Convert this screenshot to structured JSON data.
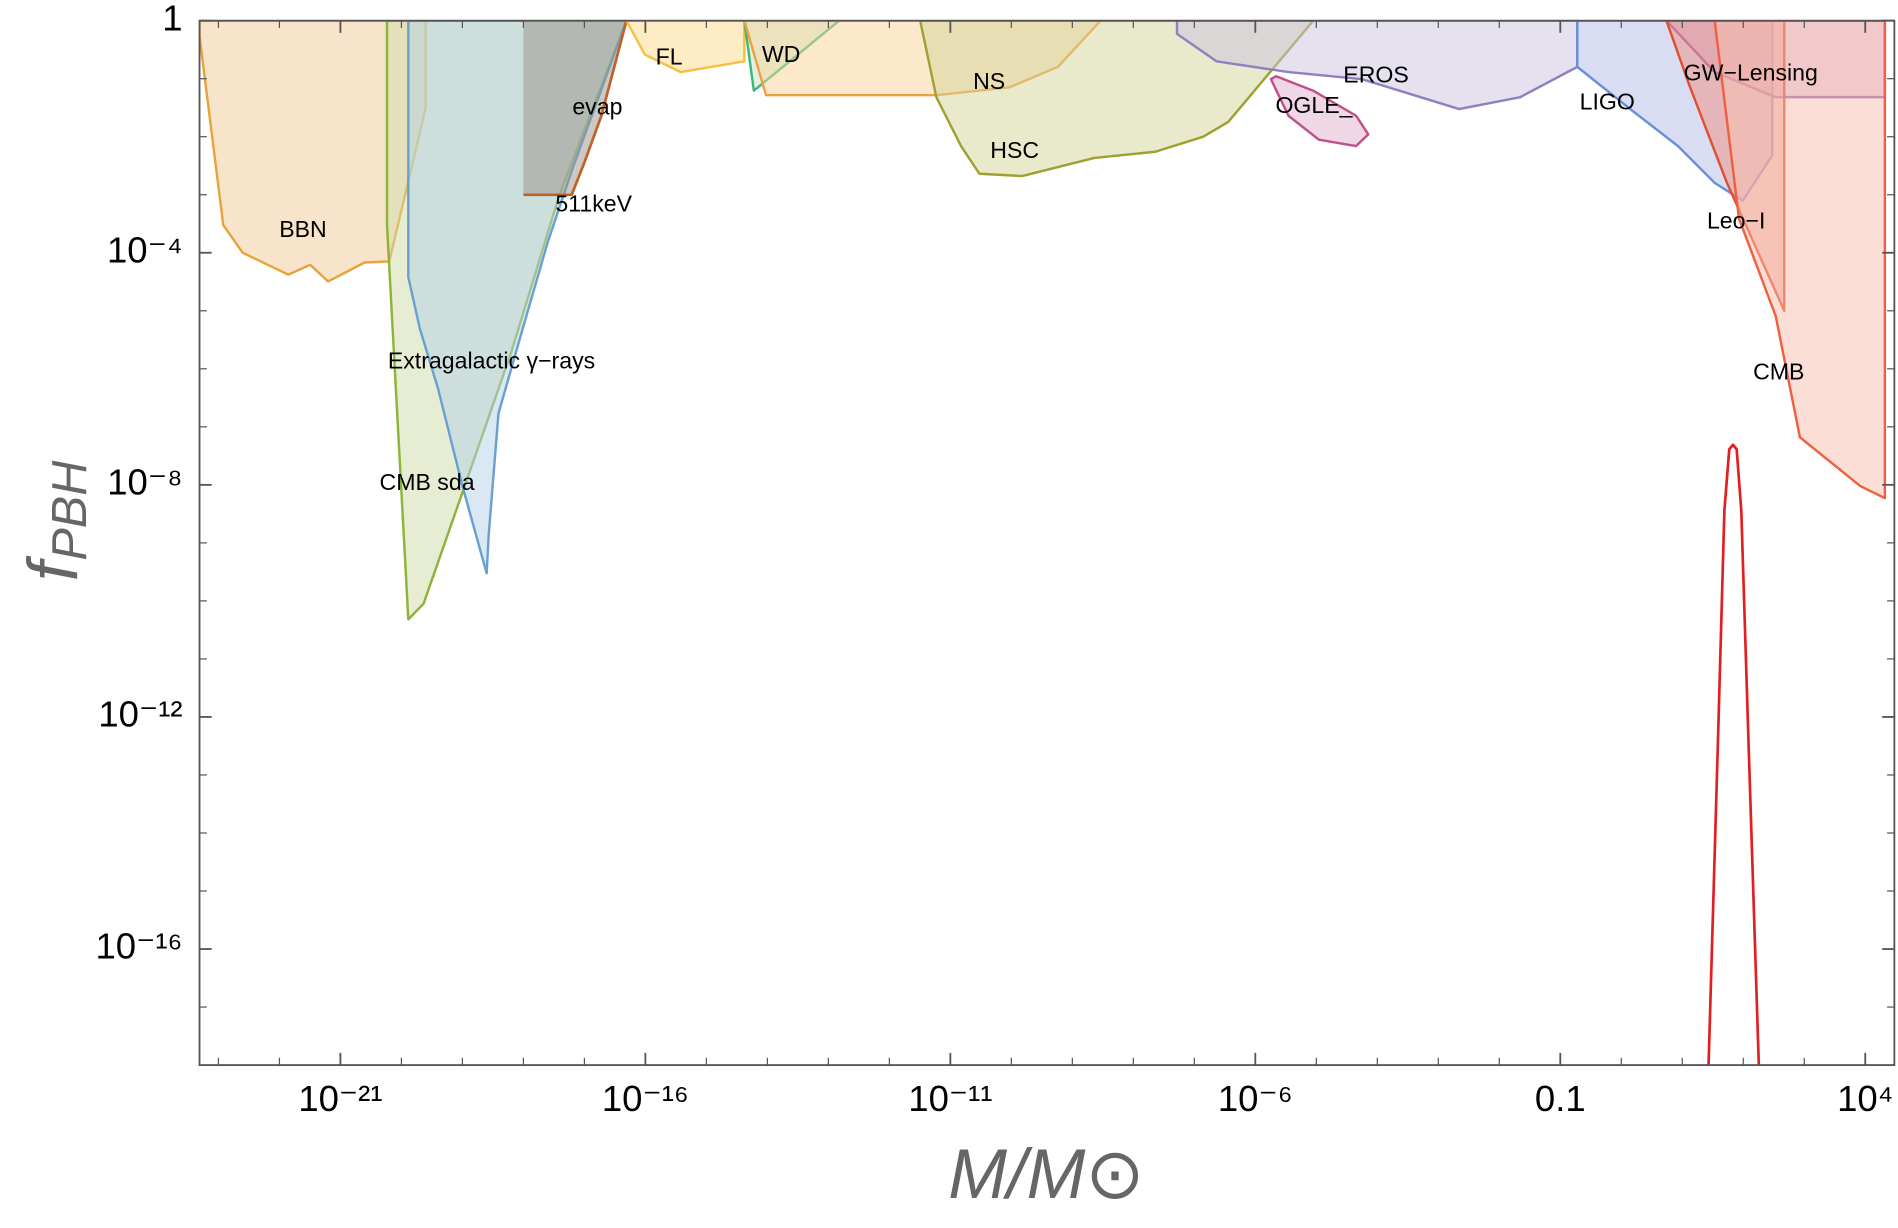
{
  "chart_data": {
    "type": "region",
    "xlabel": "M/M⊙",
    "ylabel": {
      "main": "f",
      "sub": "PBH"
    },
    "log_x": true,
    "log_y": true,
    "xlim": [
      4.9e-24,
      30000.0
    ],
    "ylim": [
      1e-18,
      1
    ],
    "xticks": [
      {
        "value": 1e-21,
        "label": "10⁻²¹"
      },
      {
        "value": 1e-16,
        "label": "10⁻¹⁶"
      },
      {
        "value": 1e-11,
        "label": "10⁻¹¹"
      },
      {
        "value": 1e-06,
        "label": "10⁻⁶"
      },
      0.1,
      {
        "value": 10000.0,
        "label": "10⁴"
      }
    ],
    "yticks": [
      1,
      {
        "value": 0.0001,
        "label": "10⁻⁴"
      },
      {
        "value": 1e-08,
        "label": "10⁻⁸"
      },
      {
        "value": 1e-12,
        "label": "10⁻¹²"
      },
      {
        "value": 1e-16,
        "label": "10⁻¹⁶"
      }
    ],
    "xticks_minor": [
      1e-23,
      1e-22,
      1e-20,
      1e-19,
      1e-18,
      1e-17,
      1e-15,
      1e-14,
      1e-13,
      1e-12,
      1e-10,
      1e-09,
      1e-08,
      1e-07,
      1e-05,
      0.0001,
      0.001,
      0.01,
      1,
      10,
      100,
      1000
    ],
    "yticks_minor": [
      0.1,
      0.01,
      0.001,
      1e-05,
      1e-06,
      1e-07,
      1e-09,
      1e-10,
      1e-11,
      1e-13,
      1e-14,
      1e-15,
      1e-17
    ],
    "series": [
      {
        "name": "BBN",
        "kind": "region",
        "fill": "#f2c995",
        "color": "#e8a33a",
        "x": [
          4.9e-24,
          4.9e-24,
          1.2e-23,
          2.5e-23,
          1.4e-22,
          3.2e-22,
          6.3e-22,
          2.5e-21,
          6.3e-21,
          1.6e-20,
          2.5e-20,
          2.5e-20
        ],
        "y": [
          1,
          0.54,
          0.0003,
          0.0001,
          4.2e-05,
          6.2e-05,
          3.2e-05,
          6.8e-05,
          7.1e-05,
          0.0043,
          0.032,
          1
        ]
      },
      {
        "name": "CMB sda",
        "kind": "region",
        "fill": "#cfdca8",
        "color": "#8ab43a",
        "x": [
          5.8e-21,
          5.8e-21,
          1.3e-20,
          2.3e-20,
          1e-19,
          6.3e-19,
          3.9e-18,
          4.9e-17
        ],
        "y": [
          1,
          0.0003,
          4.8e-11,
          8.9e-11,
          7.4e-09,
          1.9e-06,
          0.001,
          1
        ]
      },
      {
        "name": "Extragalactic γ−rays",
        "kind": "region",
        "fill": "#b3d2e6",
        "color": "#6aa0d0",
        "x": [
          1.3e-20,
          1.3e-20,
          2e-20,
          4e-20,
          1e-19,
          2.5e-19,
          2.7e-19,
          3.9e-19,
          9.8e-19,
          2.5e-18,
          6.2e-18,
          4.9e-17
        ],
        "y": [
          1,
          3.8e-05,
          5e-06,
          4.5e-07,
          9.5e-09,
          3e-10,
          1.4e-09,
          1.7e-07,
          5e-06,
          0.00015,
          0.0026,
          1
        ]
      },
      {
        "name": "evap",
        "kind": "region",
        "fill": "#9a9488",
        "color": "none",
        "x": [
          1e-18,
          1e-18,
          6.2e-18,
          1.9e-17,
          4.9e-17
        ],
        "y": [
          1,
          0.001,
          0.001,
          0.023,
          1
        ]
      },
      {
        "name": "511keV",
        "kind": "line",
        "color": "#c0602a",
        "x": [
          1e-18,
          6.2e-18,
          9.8e-18,
          1.9e-17,
          4.9e-17
        ],
        "y": [
          0.001,
          0.001,
          0.0034,
          0.023,
          1
        ]
      },
      {
        "name": "FL",
        "kind": "region",
        "fill": "#fbd98a",
        "color": "#f5c040",
        "x": [
          4.9e-17,
          9.8e-17,
          3.8e-16,
          4.2e-15,
          4.2e-15
        ],
        "y": [
          1,
          0.26,
          0.13,
          0.2,
          1
        ]
      },
      {
        "name": "WD",
        "kind": "region",
        "fill": "#bfe3c8",
        "color": "#3cb878",
        "x": [
          4.2e-15,
          6e-15,
          1.5e-13
        ],
        "y": [
          1,
          0.062,
          1
        ]
      },
      {
        "name": "NS",
        "kind": "region",
        "fill": "#f9d39a",
        "color": "#f0a040",
        "x": [
          4.2e-15,
          9.5e-15,
          5.9e-12,
          9.3e-11,
          5.8e-10,
          2.9e-09
        ],
        "y": [
          1,
          0.052,
          0.052,
          0.071,
          0.16,
          1
        ]
      },
      {
        "name": "HSC",
        "kind": "region",
        "fill": "#d4d49a",
        "color": "#a0a030",
        "x": [
          3.2e-12,
          5.9e-12,
          1.5e-11,
          3e-11,
          1.5e-10,
          2.3e-09,
          2.3e-08,
          1.4e-07,
          3.6e-07,
          8.9e-06
        ],
        "y": [
          1,
          0.048,
          0.0069,
          0.0023,
          0.0021,
          0.0043,
          0.0055,
          0.01,
          0.018,
          1
        ]
      },
      {
        "name": "EROS",
        "kind": "region",
        "fill": "#cbc4e0",
        "color": "#9080c0",
        "x": [
          5.2e-08,
          5.2e-08,
          2.3e-07,
          3.5e-06,
          5.6e-05,
          0.0022,
          0.022,
          0.19,
          0.19
        ],
        "y": [
          1,
          0.59,
          0.2,
          0.13,
          0.098,
          0.03,
          0.048,
          0.16,
          1
        ]
      },
      {
        "name": "OGLE_",
        "kind": "region",
        "fill": "#e0b0cc",
        "color": "#c0508a",
        "x": [
          1.8e-06,
          3.5e-06,
          1.1e-05,
          4.5e-05,
          7.1e-05,
          4.5e-05,
          8.9e-06,
          2.2e-06
        ],
        "y": [
          0.098,
          0.023,
          0.0089,
          0.0069,
          0.011,
          0.023,
          0.062,
          0.11
        ]
      },
      {
        "name": "LIGO",
        "kind": "region",
        "fill": "#b4bcea",
        "color": "#6a90d8",
        "x": [
          0.19,
          0.19,
          1.4,
          8.5,
          34,
          98,
          300.0,
          300.0
        ],
        "y": [
          1,
          0.16,
          0.03,
          0.0069,
          0.0016,
          0.00079,
          0.0048,
          1
        ]
      },
      {
        "name": "GW−Lensing",
        "kind": "region",
        "fill": "#d6a8cc",
        "color": "#9a60b0",
        "x": [
          5.5,
          34,
          340.0,
          21000.0,
          21000.0
        ],
        "y": [
          1,
          0.13,
          0.048,
          0.048,
          1
        ]
      },
      {
        "name": "Leo−I",
        "kind": "region",
        "fill": "#f09080",
        "color": "#e05030",
        "x": [
          5.5,
          13,
          54,
          470.0,
          470.0
        ],
        "y": [
          1,
          0.078,
          0.0016,
          1e-05,
          1
        ]
      },
      {
        "name": "CMB",
        "kind": "region",
        "fill": "#f8c0b0",
        "color": "#f06040",
        "x": [
          34,
          85,
          340.0,
          850.0,
          8300.0,
          21000.0,
          21000.0
        ],
        "y": [
          1,
          0.00039,
          8.1e-06,
          6.6e-08,
          9.5e-09,
          5.9e-09,
          1
        ]
      },
      {
        "kind": "line",
        "color": "#e02020",
        "x": [
          27,
          39,
          49,
          59,
          68,
          78,
          93,
          120.0,
          180.0
        ],
        "y": [
          1e-18,
          6.2e-13,
          3.6e-09,
          4.1e-08,
          4.9e-08,
          4.1e-08,
          3.6e-09,
          6.2e-13,
          1e-18
        ]
      }
    ]
  }
}
